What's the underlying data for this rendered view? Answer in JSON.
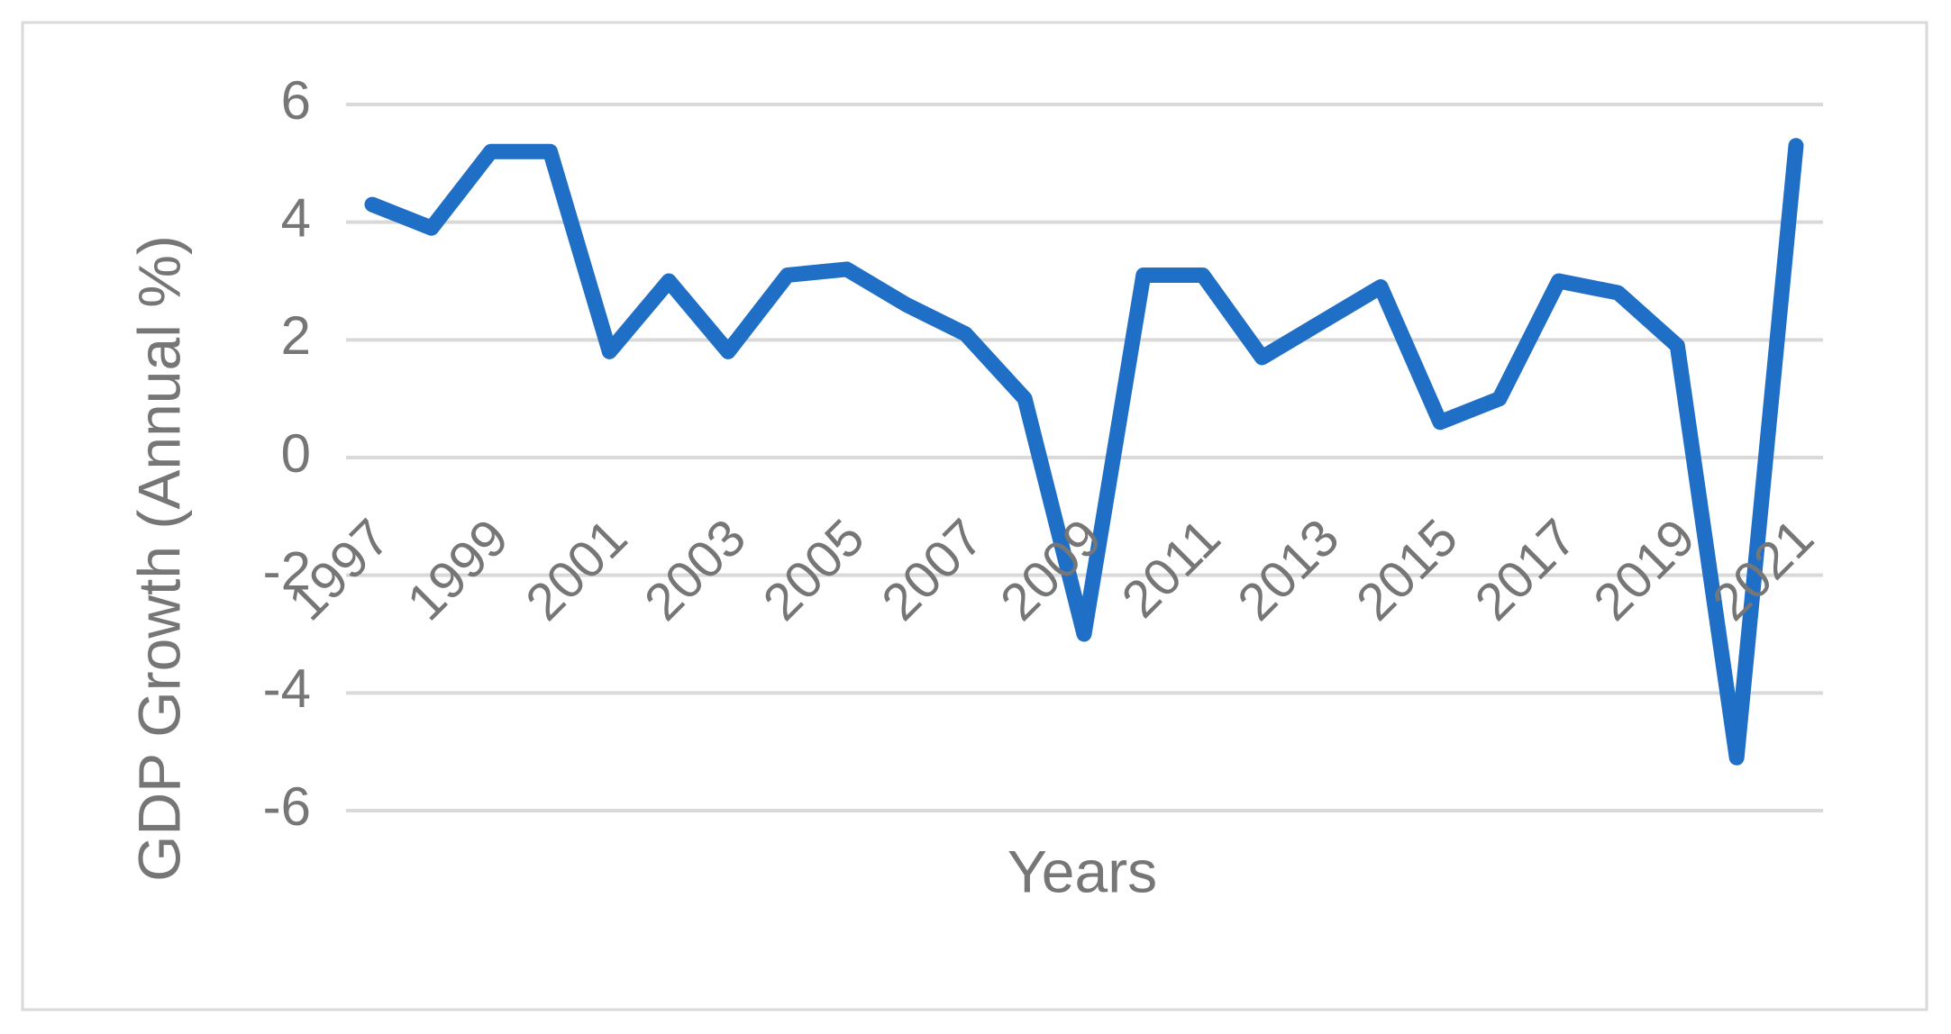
{
  "chart_data": {
    "type": "line",
    "x_label": "Years",
    "y_label": "GDP Growth (Annual %)",
    "x": [
      1997,
      1998,
      1999,
      2000,
      2001,
      2002,
      2003,
      2004,
      2005,
      2006,
      2007,
      2008,
      2009,
      2010,
      2011,
      2012,
      2013,
      2014,
      2015,
      2016,
      2017,
      2018,
      2019,
      2020,
      2021
    ],
    "values": [
      4.3,
      3.9,
      5.2,
      5.2,
      1.8,
      3.0,
      1.8,
      3.1,
      3.2,
      2.6,
      2.1,
      1.0,
      -3.0,
      3.1,
      3.1,
      1.7,
      2.3,
      2.9,
      0.6,
      1.0,
      3.0,
      2.8,
      1.9,
      -5.1,
      5.3
    ],
    "color": "#1f6fc6",
    "xlim": [
      1997,
      2021
    ],
    "xticks": [
      1997,
      1999,
      2001,
      2003,
      2005,
      2007,
      2009,
      2011,
      2013,
      2015,
      2017,
      2019,
      2021
    ],
    "ylim": [
      -6,
      6
    ],
    "yticks": [
      -6,
      -4,
      -2,
      0,
      2,
      4,
      6
    ],
    "grid": true
  }
}
